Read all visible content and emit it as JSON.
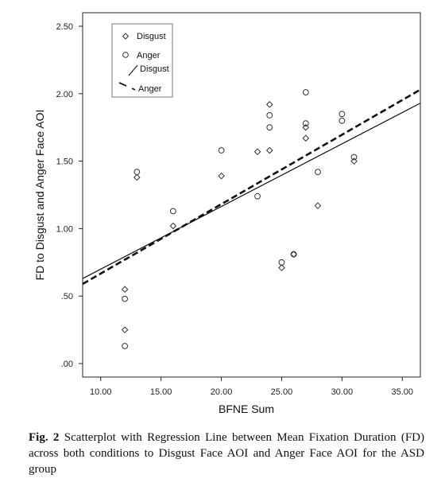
{
  "chart_data": {
    "type": "scatter",
    "xlabel": "BFNE Sum",
    "ylabel": "FD to Disgust and Anger Face AOI",
    "xlim": [
      8.5,
      36.5
    ],
    "ylim": [
      -0.1,
      2.6
    ],
    "x_ticks": [
      10,
      15,
      20,
      25,
      30,
      35
    ],
    "x_tick_labels": [
      "10.00",
      "15.00",
      "20.00",
      "25.00",
      "30.00",
      "35.00"
    ],
    "y_ticks": [
      0,
      0.5,
      1.0,
      1.5,
      2.0,
      2.5
    ],
    "y_tick_labels": [
      ".00",
      ".50",
      "1.00",
      "1.50",
      "2.00",
      "2.50"
    ],
    "grid": false,
    "legend_position": "top-left",
    "legend": [
      "Disgust",
      "Anger",
      "Disgust",
      "Anger"
    ],
    "series": [
      {
        "name": "Disgust",
        "marker": "diamond",
        "points": [
          [
            12,
            0.55
          ],
          [
            12,
            0.25
          ],
          [
            13,
            1.38
          ],
          [
            16,
            1.02
          ],
          [
            20,
            1.39
          ],
          [
            23,
            1.57
          ],
          [
            24,
            1.92
          ],
          [
            24,
            1.58
          ],
          [
            25,
            0.71
          ],
          [
            26,
            0.81
          ],
          [
            27,
            1.75
          ],
          [
            27,
            1.67
          ],
          [
            28,
            1.17
          ],
          [
            31,
            1.5
          ]
        ]
      },
      {
        "name": "Anger",
        "marker": "circle",
        "points": [
          [
            12,
            0.48
          ],
          [
            12,
            0.13
          ],
          [
            13,
            1.42
          ],
          [
            16,
            1.13
          ],
          [
            20,
            1.58
          ],
          [
            23,
            1.24
          ],
          [
            24,
            1.84
          ],
          [
            24,
            1.75
          ],
          [
            25,
            0.75
          ],
          [
            26,
            0.81
          ],
          [
            27,
            2.01
          ],
          [
            27,
            1.78
          ],
          [
            28,
            1.42
          ],
          [
            30,
            1.85
          ],
          [
            30,
            1.8
          ],
          [
            31,
            1.53
          ]
        ]
      }
    ],
    "regression_lines": [
      {
        "name": "Disgust",
        "style": "solid",
        "x": [
          8.5,
          36.5
        ],
        "y": [
          0.63,
          1.93
        ]
      },
      {
        "name": "Anger",
        "style": "dashed",
        "x": [
          8.5,
          36.5
        ],
        "y": [
          0.59,
          2.03
        ]
      }
    ]
  },
  "caption": {
    "label": "Fig. 2",
    "text": "Scatterplot with Regression Line between Mean Fixation Duration (FD) across both conditions to Disgust Face AOI and Anger Face AOI for the ASD group"
  }
}
